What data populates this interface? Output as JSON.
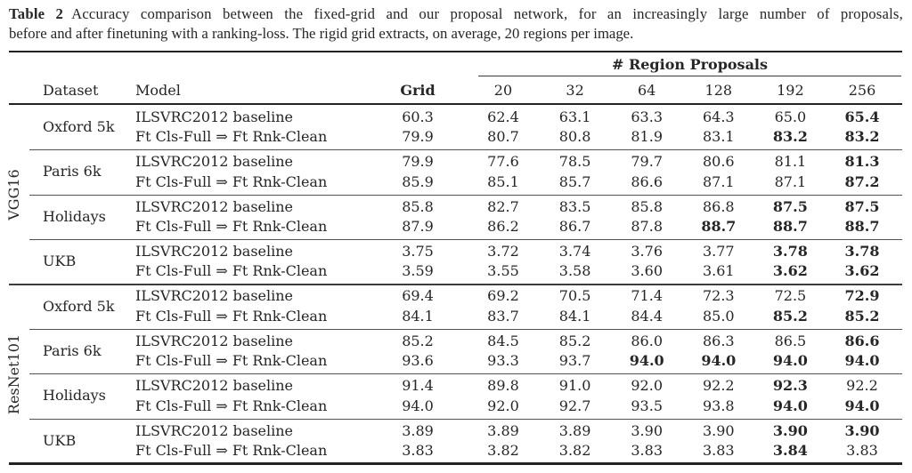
{
  "caption": {
    "label": "Table 2",
    "line1": "Accuracy comparison between the fixed-grid and our proposal network, for an increasingly large number of proposals,",
    "line2": "before and after finetuning with a ranking-loss. The rigid grid extracts, on average, 20 regions per image."
  },
  "header": {
    "proposals_title": "# Region Proposals",
    "dataset": "Dataset",
    "model": "Model",
    "grid": "Grid",
    "proposal_counts": [
      "20",
      "32",
      "64",
      "128",
      "192",
      "256"
    ]
  },
  "blocks": [
    {
      "label": "VGG16",
      "groups": [
        {
          "dataset": "Oxford 5k",
          "rows": [
            {
              "model": "ILSVRC2012 baseline",
              "grid": "60.3",
              "values": [
                "62.4",
                "63.1",
                "63.3",
                "64.3",
                "65.0",
                "65.4"
              ],
              "bold": [
                0,
                0,
                0,
                0,
                0,
                1
              ]
            },
            {
              "model": "Ft Cls-Full ⇒ Ft Rnk-Clean",
              "grid": "79.9",
              "values": [
                "80.7",
                "80.8",
                "81.9",
                "83.1",
                "83.2",
                "83.2"
              ],
              "bold": [
                0,
                0,
                0,
                0,
                1,
                1
              ]
            }
          ]
        },
        {
          "dataset": "Paris 6k",
          "rows": [
            {
              "model": "ILSVRC2012 baseline",
              "grid": "79.9",
              "values": [
                "77.6",
                "78.5",
                "79.7",
                "80.6",
                "81.1",
                "81.3"
              ],
              "bold": [
                0,
                0,
                0,
                0,
                0,
                1
              ]
            },
            {
              "model": "Ft Cls-Full ⇒ Ft Rnk-Clean",
              "grid": "85.9",
              "values": [
                "85.1",
                "85.7",
                "86.6",
                "87.1",
                "87.1",
                "87.2"
              ],
              "bold": [
                0,
                0,
                0,
                0,
                0,
                1
              ]
            }
          ]
        },
        {
          "dataset": "Holidays",
          "rows": [
            {
              "model": "ILSVRC2012 baseline",
              "grid": "85.8",
              "values": [
                "82.7",
                "83.5",
                "85.8",
                "86.8",
                "87.5",
                "87.5"
              ],
              "bold": [
                0,
                0,
                0,
                0,
                1,
                1
              ]
            },
            {
              "model": "Ft Cls-Full ⇒ Ft Rnk-Clean",
              "grid": "87.9",
              "values": [
                "86.2",
                "86.7",
                "87.8",
                "88.7",
                "88.7",
                "88.7"
              ],
              "bold": [
                0,
                0,
                0,
                1,
                1,
                1
              ]
            }
          ]
        },
        {
          "dataset": "UKB",
          "rows": [
            {
              "model": "ILSVRC2012 baseline",
              "grid": "3.75",
              "values": [
                "3.72",
                "3.74",
                "3.76",
                "3.77",
                "3.78",
                "3.78"
              ],
              "bold": [
                0,
                0,
                0,
                0,
                1,
                1
              ]
            },
            {
              "model": "Ft Cls-Full ⇒ Ft Rnk-Clean",
              "grid": "3.59",
              "values": [
                "3.55",
                "3.58",
                "3.60",
                "3.61",
                "3.62",
                "3.62"
              ],
              "bold": [
                0,
                0,
                0,
                0,
                1,
                1
              ]
            }
          ]
        }
      ]
    },
    {
      "label": "ResNet101",
      "groups": [
        {
          "dataset": "Oxford 5k",
          "rows": [
            {
              "model": "ILSVRC2012 baseline",
              "grid": "69.4",
              "values": [
                "69.2",
                "70.5",
                "71.4",
                "72.3",
                "72.5",
                "72.9"
              ],
              "bold": [
                0,
                0,
                0,
                0,
                0,
                1
              ]
            },
            {
              "model": "Ft Cls-Full ⇒ Ft Rnk-Clean",
              "grid": "84.1",
              "values": [
                "83.7",
                "84.1",
                "84.4",
                "85.0",
                "85.2",
                "85.2"
              ],
              "bold": [
                0,
                0,
                0,
                0,
                1,
                1
              ]
            }
          ]
        },
        {
          "dataset": "Paris 6k",
          "rows": [
            {
              "model": "ILSVRC2012 baseline",
              "grid": "85.2",
              "values": [
                "84.5",
                "85.2",
                "86.0",
                "86.3",
                "86.5",
                "86.6"
              ],
              "bold": [
                0,
                0,
                0,
                0,
                0,
                1
              ]
            },
            {
              "model": "Ft Cls-Full ⇒ Ft Rnk-Clean",
              "grid": "93.6",
              "values": [
                "93.3",
                "93.7",
                "94.0",
                "94.0",
                "94.0",
                "94.0"
              ],
              "bold": [
                0,
                0,
                1,
                1,
                1,
                1
              ]
            }
          ]
        },
        {
          "dataset": "Holidays",
          "rows": [
            {
              "model": "ILSVRC2012 baseline",
              "grid": "91.4",
              "values": [
                "89.8",
                "91.0",
                "92.0",
                "92.2",
                "92.3",
                "92.2"
              ],
              "bold": [
                0,
                0,
                0,
                0,
                1,
                0
              ]
            },
            {
              "model": "Ft Cls-Full ⇒ Ft Rnk-Clean",
              "grid": "94.0",
              "values": [
                "92.0",
                "92.7",
                "93.5",
                "93.8",
                "94.0",
                "94.0"
              ],
              "bold": [
                0,
                0,
                0,
                0,
                1,
                1
              ]
            }
          ]
        },
        {
          "dataset": "UKB",
          "rows": [
            {
              "model": "ILSVRC2012 baseline",
              "grid": "3.89",
              "values": [
                "3.89",
                "3.89",
                "3.90",
                "3.90",
                "3.90",
                "3.90"
              ],
              "bold": [
                0,
                0,
                0,
                0,
                1,
                1
              ]
            },
            {
              "model": "Ft Cls-Full ⇒ Ft Rnk-Clean",
              "grid": "3.83",
              "values": [
                "3.82",
                "3.82",
                "3.83",
                "3.83",
                "3.84",
                "3.83"
              ],
              "bold": [
                0,
                0,
                0,
                0,
                1,
                0
              ]
            }
          ]
        }
      ]
    }
  ]
}
